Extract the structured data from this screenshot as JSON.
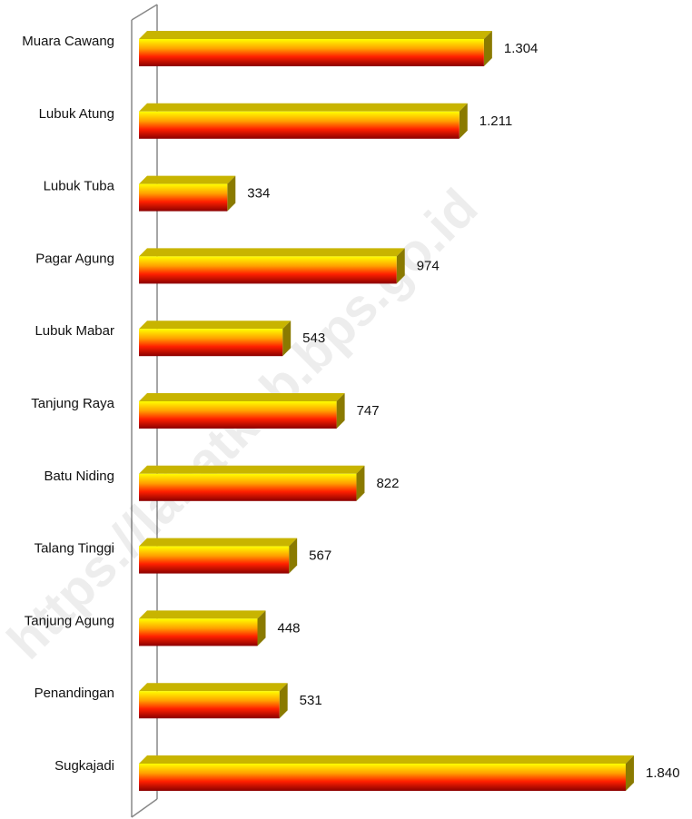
{
  "chart_data": {
    "type": "bar",
    "orientation": "horizontal",
    "categories": [
      "Muara Cawang",
      "Lubuk Atung",
      "Lubuk Tuba",
      "Pagar Agung",
      "Lubuk Mabar",
      "Tanjung Raya",
      "Batu Niding",
      "Talang Tinggi",
      "Tanjung Agung",
      "Penandingan",
      "Sugkajadi"
    ],
    "values": [
      1304,
      1211,
      334,
      974,
      543,
      747,
      822,
      567,
      448,
      531,
      1840
    ],
    "value_labels": [
      "1.304",
      "1.211",
      "334",
      "974",
      "543",
      "747",
      "822",
      "567",
      "448",
      "531",
      "1.840"
    ],
    "color": "#ff3300",
    "watermark": "https://lahatkab.bps.go.id"
  }
}
